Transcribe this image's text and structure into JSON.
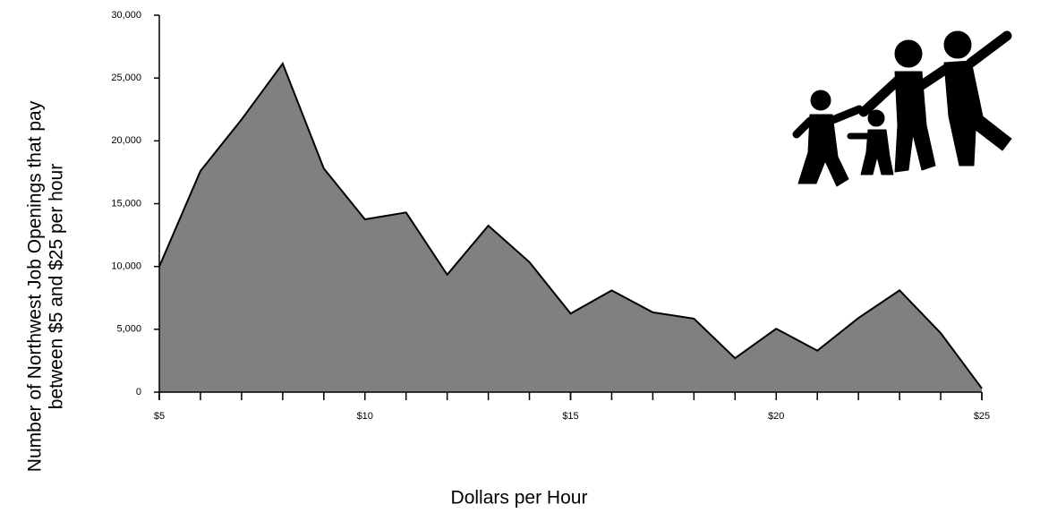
{
  "chart_data": {
    "type": "area",
    "ylabel": [
      "Number of Northwest Job Openings that pay",
      "between $5 and $25 per hour"
    ],
    "xlabel": "Dollars per Hour",
    "x": [
      5,
      6,
      7,
      8,
      9,
      10,
      11,
      12,
      13,
      14,
      15,
      16,
      17,
      18,
      19,
      20,
      21,
      22,
      23,
      24,
      25
    ],
    "values": [
      10000,
      17600,
      21700,
      26150,
      17800,
      13750,
      14300,
      9350,
      13250,
      10350,
      6250,
      8100,
      6350,
      5850,
      2700,
      5050,
      3300,
      5900,
      8100,
      4700,
      300
    ],
    "color": "#808080",
    "xlim": [
      5,
      25
    ],
    "ylim": [
      0,
      30000
    ],
    "xticks": [
      {
        "value": 5,
        "label": "$5"
      },
      {
        "value": 10,
        "label": "$10"
      },
      {
        "value": 15,
        "label": "$15"
      },
      {
        "value": 20,
        "label": "$20"
      },
      {
        "value": 25,
        "label": "$25"
      }
    ],
    "yticks": [
      0,
      {
        "value": 5000,
        "label": "5,000"
      },
      {
        "value": 10000,
        "label": "10,000"
      },
      {
        "value": 15000,
        "label": "15,000"
      },
      {
        "value": 20000,
        "label": "20,000"
      },
      {
        "value": 25000,
        "label": "25,000"
      },
      {
        "value": 30000,
        "label": "30,000"
      }
    ]
  }
}
